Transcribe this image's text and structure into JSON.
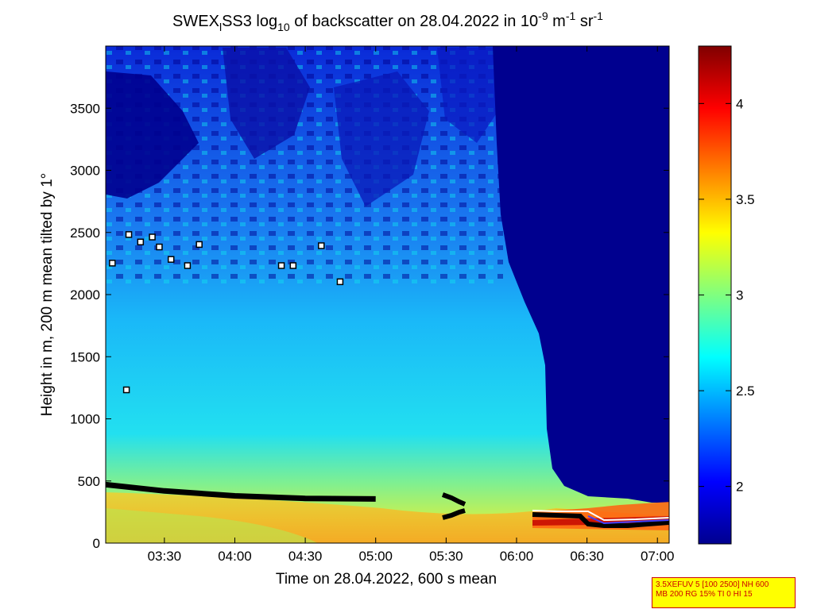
{
  "chart_data": {
    "type": "heatmap",
    "title": {
      "main": "SWEX",
      "sub1": "l",
      "mid": "SS3 log",
      "sub2": "10",
      "mid2": " of backscatter on 28.04.2022 in 10",
      "sup1": "-9",
      "mid3": " m",
      "sup2": "-1",
      "mid4": " sr",
      "sup3": "-1"
    },
    "xlabel": "Time on 28.04.2022, 600 s mean",
    "ylabel": "Height in m, 200 m mean tilted by 1°",
    "xlim": [
      "03:05",
      "07:05"
    ],
    "ylim": [
      0,
      4000
    ],
    "x_ticks": [
      "03:30",
      "04:00",
      "04:30",
      "05:00",
      "05:30",
      "06:00",
      "06:30",
      "07:00"
    ],
    "y_ticks": [
      0,
      500,
      1000,
      1500,
      2000,
      2500,
      3000,
      3500
    ],
    "colorbar": {
      "range": [
        1.7,
        4.3
      ],
      "ticks": [
        "2",
        "2.5",
        "3",
        "3.5",
        "4"
      ],
      "colormap": "jet"
    },
    "layer_heights": [
      {
        "time": "03:05",
        "height": 470
      },
      {
        "time": "03:30",
        "height": 420
      },
      {
        "time": "04:00",
        "height": 380
      },
      {
        "time": "04:30",
        "height": 360
      },
      {
        "time": "05:00",
        "height": 355
      }
    ],
    "cloud_markers": [
      {
        "time": "03:08",
        "height": 2250
      },
      {
        "time": "03:15",
        "height": 2480
      },
      {
        "time": "03:20",
        "height": 2420
      },
      {
        "time": "03:25",
        "height": 2460
      },
      {
        "time": "03:28",
        "height": 2380
      },
      {
        "time": "03:33",
        "height": 2280
      },
      {
        "time": "03:40",
        "height": 2230
      },
      {
        "time": "03:45",
        "height": 2400
      },
      {
        "time": "04:20",
        "height": 2230
      },
      {
        "time": "04:25",
        "height": 2230
      },
      {
        "time": "04:37",
        "height": 2390
      },
      {
        "time": "04:45",
        "height": 2100
      },
      {
        "time": "03:14",
        "height": 1230
      }
    ]
  },
  "info_box": {
    "line1": "3.5XEFUV 5 [100 2500] NH 600",
    "line2": "MB 200 RG 15% TI 0 HI 15"
  }
}
